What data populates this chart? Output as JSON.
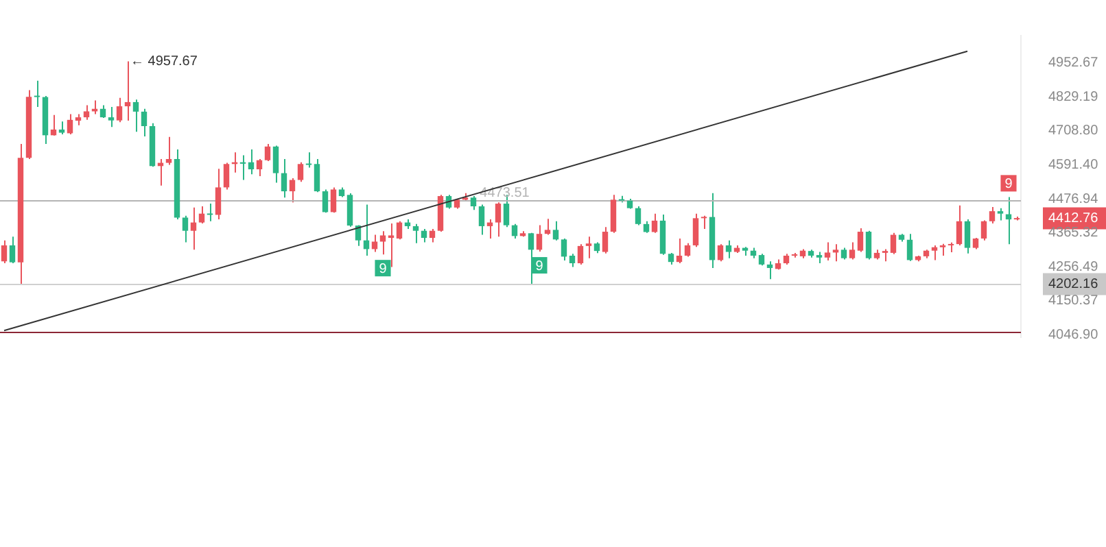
{
  "chart_data": {
    "type": "candlestick",
    "log": true,
    "tick_labels": "y",
    "categories": [
      null,
      null,
      null,
      null,
      null,
      null,
      null,
      null,
      null,
      null,
      null,
      null,
      null,
      null,
      null,
      null,
      null,
      null,
      null,
      null,
      null,
      null,
      null,
      null,
      null,
      null,
      null,
      null,
      null,
      null,
      null,
      null,
      null,
      null,
      null,
      null,
      null,
      null,
      null,
      null,
      null,
      null,
      null,
      null,
      null,
      null,
      null,
      null,
      null,
      null,
      null,
      null,
      null,
      null,
      null,
      null,
      null,
      null,
      null,
      null,
      null,
      null,
      null,
      null,
      null,
      null,
      null,
      null,
      null,
      null,
      null,
      null,
      null,
      null,
      null,
      null,
      null,
      null,
      null,
      null,
      null,
      null,
      null,
      null,
      null,
      null,
      null,
      null,
      null,
      null,
      null,
      null,
      null,
      null,
      null,
      null,
      null,
      null,
      null,
      null,
      null,
      null,
      null,
      null,
      null,
      null,
      null,
      null,
      null,
      null,
      null,
      null,
      null,
      null,
      null,
      null,
      null,
      null,
      null,
      null,
      null,
      null,
      null,
      null
    ],
    "ohlc": [
      [
        4274,
        4341,
        4268,
        4325
      ],
      [
        4325,
        4353,
        4268,
        4271
      ],
      [
        4271,
        4663,
        4202.16,
        4615
      ],
      [
        4615,
        4853,
        4611,
        4829
      ],
      [
        4832,
        4887,
        4793,
        4828
      ],
      [
        4828,
        4832,
        4663,
        4693
      ],
      [
        4693,
        4764,
        4692,
        4713
      ],
      [
        4713,
        4741,
        4696,
        4702
      ],
      [
        4700,
        4767,
        4696,
        4747
      ],
      [
        4744,
        4767,
        4728,
        4756
      ],
      [
        4756,
        4799,
        4747,
        4777
      ],
      [
        4777,
        4816,
        4767,
        4786
      ],
      [
        4786,
        4799,
        4754,
        4756
      ],
      [
        4756,
        4793,
        4722,
        4745
      ],
      [
        4745,
        4825,
        4739,
        4795
      ],
      [
        4795,
        4957.67,
        4744,
        4810
      ],
      [
        4810,
        4819,
        4705,
        4776
      ],
      [
        4776,
        4786,
        4689,
        4725
      ],
      [
        4725,
        4735,
        4585,
        4587
      ],
      [
        4587,
        4611,
        4521,
        4598
      ],
      [
        4598,
        4687,
        4591,
        4611
      ],
      [
        4611,
        4644,
        4409,
        4415
      ],
      [
        4415,
        4421,
        4335,
        4372
      ],
      [
        4372,
        4448,
        4311,
        4399
      ],
      [
        4399,
        4452,
        4396,
        4428
      ],
      [
        4428,
        4461,
        4403,
        4424
      ],
      [
        4424,
        4578,
        4409,
        4515
      ],
      [
        4515,
        4598,
        4508,
        4594
      ],
      [
        4594,
        4634,
        4565,
        4600
      ],
      [
        4600,
        4624,
        4540,
        4595
      ],
      [
        4600,
        4644,
        4559,
        4576
      ],
      [
        4576,
        4611,
        4553,
        4607
      ],
      [
        4607,
        4663,
        4604,
        4654
      ],
      [
        4654,
        4657,
        4531,
        4563
      ],
      [
        4563,
        4611,
        4481,
        4502
      ],
      [
        4502,
        4546,
        4465,
        4540
      ],
      [
        4540,
        4600,
        4534,
        4594
      ],
      [
        4594,
        4634,
        4582,
        4591
      ],
      [
        4594,
        4611,
        4499,
        4502
      ],
      [
        4502,
        4508,
        4431,
        4433
      ],
      [
        4433,
        4515,
        4431,
        4508
      ],
      [
        4508,
        4515,
        4483,
        4486
      ],
      [
        4490,
        4495,
        4385,
        4389
      ],
      [
        4389,
        4390,
        4323,
        4341
      ],
      [
        4341,
        4458,
        4292,
        4313
      ],
      [
        4313,
        4359,
        4304,
        4337
      ],
      [
        4337,
        4371,
        4296,
        4357
      ],
      [
        4349,
        4396,
        4256,
        4357
      ],
      [
        4347,
        4403,
        4344,
        4399
      ],
      [
        4399,
        4409,
        4378,
        4387
      ],
      [
        4387,
        4394,
        4332,
        4372
      ],
      [
        4372,
        4378,
        4335,
        4349
      ],
      [
        4349,
        4378,
        4335,
        4372
      ],
      [
        4372,
        4490,
        4369,
        4486
      ],
      [
        4486,
        4490,
        4444,
        4448
      ],
      [
        4448,
        4477,
        4444,
        4474
      ],
      [
        4474,
        4496,
        4471,
        4481
      ],
      [
        4481,
        4486,
        4440,
        4452
      ],
      [
        4452,
        4458,
        4359,
        4387
      ],
      [
        4387,
        4409,
        4347,
        4399
      ],
      [
        4399,
        4465,
        4353,
        4461
      ],
      [
        4461,
        4490,
        4384,
        4390
      ],
      [
        4390,
        4394,
        4347,
        4355
      ],
      [
        4355,
        4371,
        4353,
        4364
      ],
      [
        4364,
        4365,
        4202.16,
        4311
      ],
      [
        4311,
        4390,
        4305,
        4362
      ],
      [
        4362,
        4411,
        4359,
        4375
      ],
      [
        4375,
        4403,
        4341,
        4344
      ],
      [
        4344,
        4347,
        4277,
        4289
      ],
      [
        4292,
        4298,
        4256,
        4268
      ],
      [
        4268,
        4329,
        4264,
        4323
      ],
      [
        4323,
        4353,
        4284,
        4331
      ],
      [
        4331,
        4335,
        4300,
        4307
      ],
      [
        4304,
        4384,
        4299,
        4369
      ],
      [
        4369,
        4490,
        4365,
        4474
      ],
      [
        4474,
        4487,
        4465,
        4471
      ],
      [
        4471,
        4477,
        4444,
        4446
      ],
      [
        4446,
        4452,
        4390,
        4394
      ],
      [
        4394,
        4403,
        4365,
        4368
      ],
      [
        4368,
        4428,
        4365,
        4405
      ],
      [
        4405,
        4425,
        4295,
        4298
      ],
      [
        4298,
        4301,
        4264,
        4272
      ],
      [
        4272,
        4347,
        4268,
        4292
      ],
      [
        4292,
        4332,
        4289,
        4325
      ],
      [
        4325,
        4428,
        4320,
        4413
      ],
      [
        4413,
        4421,
        4378,
        4417
      ],
      [
        4417,
        4496,
        4253,
        4278
      ],
      [
        4278,
        4329,
        4274,
        4325
      ],
      [
        4325,
        4341,
        4284,
        4304
      ],
      [
        4304,
        4325,
        4301,
        4317
      ],
      [
        4317,
        4320,
        4292,
        4308
      ],
      [
        4308,
        4317,
        4284,
        4292
      ],
      [
        4294,
        4298,
        4261,
        4264
      ],
      [
        4264,
        4274,
        4218,
        4253
      ],
      [
        4250,
        4280,
        4248,
        4268
      ],
      [
        4268,
        4298,
        4264,
        4292
      ],
      [
        4292,
        4301,
        4286,
        4294
      ],
      [
        4290,
        4313,
        4284,
        4308
      ],
      [
        4307,
        4311,
        4286,
        4292
      ],
      [
        4294,
        4304,
        4268,
        4286
      ],
      [
        4286,
        4335,
        4277,
        4302
      ],
      [
        4302,
        4329,
        4274,
        4311
      ],
      [
        4311,
        4317,
        4280,
        4284
      ],
      [
        4284,
        4335,
        4280,
        4311
      ],
      [
        4308,
        4380,
        4304,
        4369
      ],
      [
        4369,
        4372,
        4280,
        4284
      ],
      [
        4284,
        4311,
        4280,
        4301
      ],
      [
        4301,
        4313,
        4274,
        4307
      ],
      [
        4301,
        4365,
        4297,
        4359
      ],
      [
        4359,
        4362,
        4337,
        4343
      ],
      [
        4343,
        4362,
        4275,
        4278
      ],
      [
        4278,
        4292,
        4274,
        4290
      ],
      [
        4290,
        4311,
        4284,
        4308
      ],
      [
        4308,
        4325,
        4278,
        4319
      ],
      [
        4319,
        4330,
        4292,
        4325
      ],
      [
        4325,
        4334,
        4303,
        4329
      ],
      [
        4329,
        4455,
        4325,
        4403
      ],
      [
        4403,
        4409,
        4299,
        4317
      ],
      [
        4317,
        4349,
        4313,
        4347
      ],
      [
        4347,
        4406,
        4341,
        4403
      ],
      [
        4403,
        4450,
        4396,
        4436
      ],
      [
        4436,
        4446,
        4406,
        4428
      ],
      [
        4426,
        4483,
        4329,
        4409
      ],
      [
        4409,
        4418,
        4406,
        4412.76
      ]
    ],
    "colors": [
      "#e9545c",
      "#2bb686",
      "#e9545c",
      "#e9545c",
      "#2bb686",
      "#2bb686",
      "#e9545c",
      "#2bb686",
      "#e9545c",
      "#e9545c",
      "#e9545c",
      "#e9545c",
      "#2bb686",
      "#2bb686",
      "#e9545c",
      "#e9545c",
      "#2bb686",
      "#2bb686",
      "#2bb686",
      "#e9545c",
      "#e9545c",
      "#2bb686",
      "#2bb686",
      "#e9545c",
      "#e9545c",
      "#2bb686",
      "#e9545c",
      "#e9545c",
      "#e9545c",
      "#2bb686",
      "#2bb686",
      "#e9545c",
      "#e9545c",
      "#2bb686",
      "#2bb686",
      "#e9545c",
      "#e9545c",
      "#2bb686",
      "#2bb686",
      "#2bb686",
      "#e9545c",
      "#2bb686",
      "#2bb686",
      "#2bb686",
      "#2bb686",
      "#e9545c",
      "#e9545c",
      "#e9545c",
      "#e9545c",
      "#2bb686",
      "#2bb686",
      "#2bb686",
      "#e9545c",
      "#e9545c",
      "#2bb686",
      "#e9545c",
      "#e9545c",
      "#2bb686",
      "#2bb686",
      "#e9545c",
      "#e9545c",
      "#2bb686",
      "#2bb686",
      "#e9545c",
      "#2bb686",
      "#e9545c",
      "#e9545c",
      "#2bb686",
      "#2bb686",
      "#2bb686",
      "#e9545c",
      "#e9545c",
      "#2bb686",
      "#e9545c",
      "#e9545c",
      "#2bb686",
      "#2bb686",
      "#2bb686",
      "#2bb686",
      "#e9545c",
      "#2bb686",
      "#2bb686",
      "#e9545c",
      "#e9545c",
      "#e9545c",
      "#e9545c",
      "#2bb686",
      "#e9545c",
      "#2bb686",
      "#e9545c",
      "#2bb686",
      "#2bb686",
      "#2bb686",
      "#2bb686",
      "#e9545c",
      "#e9545c",
      "#e9545c",
      "#e9545c",
      "#2bb686",
      "#2bb686",
      "#e9545c",
      "#e9545c",
      "#2bb686",
      "#e9545c",
      "#e9545c",
      "#2bb686",
      "#e9545c",
      "#e9545c",
      "#e9545c",
      "#2bb686",
      "#2bb686",
      "#e9545c",
      "#e9545c",
      "#e9545c",
      "#e9545c",
      "#e9545c",
      "#e9545c",
      "#2bb686",
      "#e9545c",
      "#e9545c",
      "#e9545c",
      "#2bb686",
      "#2bb686",
      "#e9545c"
    ],
    "series": [
      {
        "type": "line",
        "color": "#333333",
        "values": [
          4060,
          null,
          null,
          null,
          null,
          null,
          null,
          null,
          null,
          null,
          null,
          null,
          null,
          null,
          null,
          null,
          null,
          null,
          null,
          null,
          null,
          null,
          null,
          null,
          null,
          null,
          null,
          null,
          null,
          null,
          null,
          null,
          null,
          null,
          null,
          null,
          null,
          null,
          null,
          null,
          null,
          null,
          null,
          null,
          null,
          null,
          null,
          null,
          null,
          null,
          null,
          null,
          null,
          null,
          null,
          null,
          null,
          null,
          null,
          null,
          null,
          null,
          null,
          null,
          null,
          null,
          null,
          null,
          null,
          null,
          null,
          null,
          null,
          null,
          null,
          null,
          null,
          null,
          null,
          null,
          null,
          null,
          null,
          null,
          null,
          null,
          null,
          null,
          null,
          null,
          null,
          null,
          null,
          null,
          null,
          null,
          null,
          null,
          null,
          null,
          null,
          null,
          null,
          null,
          null,
          null,
          null,
          null,
          null,
          null,
          null,
          null,
          null,
          null,
          null,
          null,
          null,
          4995,
          null,
          null,
          null,
          null,
          null,
          null
        ]
      }
    ],
    "ylim": [
      4040,
      5053
    ],
    "yticks": [
      4952.67,
      4829.19,
      {
        "value": 4708.8,
        "label": "4708.80"
      },
      {
        "value": 4591.4,
        "label": "4591.40"
      },
      4476.94,
      4412.76,
      4365.32,
      4256.49,
      4202.16,
      4150.37,
      {
        "value": 4046.9,
        "label": "4046.90"
      }
    ],
    "ref_lines": [
      {
        "axis": "y",
        "value": 4473.51,
        "label": "4473.51",
        "color": "#b4b4b4"
      },
      {
        "axis": "y",
        "value": 4202.16,
        "color": "#d0d0d0"
      },
      {
        "axis": "y",
        "value": 4056,
        "color": "#8b2635"
      }
    ],
    "annotations": [
      "← 4957.67",
      {
        "text": "9",
        "y": 4296
      },
      {
        "text": "9",
        "y": 4305
      },
      {
        "text": "9",
        "y": 4483
      }
    ]
  }
}
